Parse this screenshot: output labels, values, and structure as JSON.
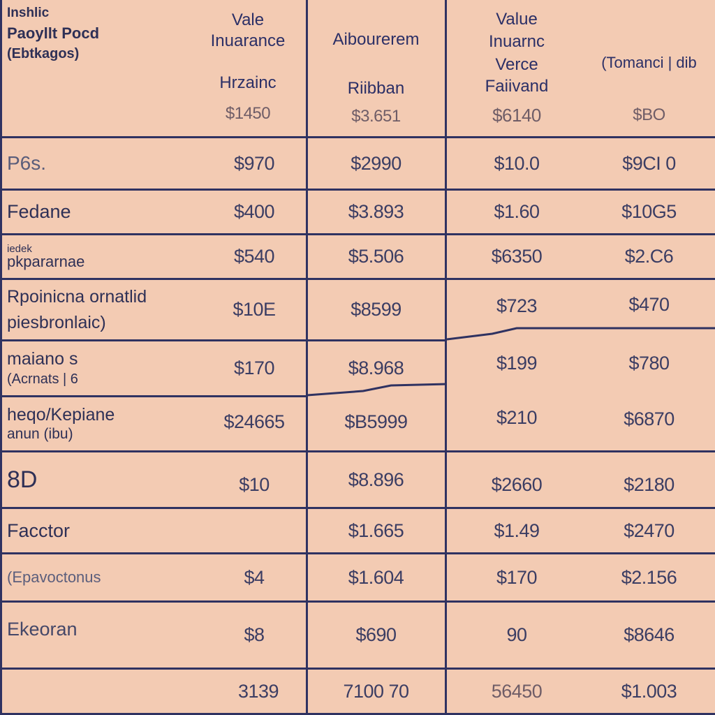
{
  "header": {
    "c0": [
      "Inshlic",
      "Paoyllt Pocd",
      "(Ebtkagos)"
    ],
    "c1_top": [
      "Vale",
      "Inuarance"
    ],
    "c1_sub": "Hrzainc",
    "c1_val": "$1450",
    "c2_top": "Aibourerem",
    "c2_sub": "Riibban",
    "c2_val": "$3.651",
    "c3_top": [
      "Value",
      "Inuarnc",
      "Verce",
      "Faiivand"
    ],
    "c3_val": "$6140",
    "c4_top": "(Tomanci | dib",
    "c4_val": "$BO"
  },
  "rows": [
    {
      "label": [
        "P6s."
      ],
      "v": [
        "$970",
        "$2990",
        "$10.0",
        "$9CI 0"
      ]
    },
    {
      "label": [
        "Fedane"
      ],
      "v": [
        "$400",
        "$3.893",
        "$1.60",
        "$10G5"
      ]
    },
    {
      "label": [
        "iedek",
        "pkpararnae"
      ],
      "v": [
        "$540",
        "$5.506",
        "$6350",
        "$2.C6"
      ]
    },
    {
      "label": [
        "Rpoinicna ornatlid",
        "piesbronlaic)"
      ],
      "v": [
        "$10E",
        "$8599",
        "$723",
        "$470"
      ]
    },
    {
      "label": [
        "maiano s",
        "(Acrnats | 6"
      ],
      "v": [
        "$170",
        "$8.968",
        "$199",
        "$780"
      ]
    },
    {
      "label": [
        "heqo/Kepiane",
        "anun (ibu)"
      ],
      "v": [
        "$24665",
        "$B5999",
        "$210",
        "$6870"
      ]
    },
    {
      "label": [
        "8D"
      ],
      "v": [
        "$10",
        "$8.896",
        "$2660",
        "$2180"
      ]
    },
    {
      "label": [
        "Facctor"
      ],
      "v": [
        "",
        "$1.665",
        "$1.49",
        "$2470"
      ]
    },
    {
      "label": [
        "(Epavoctonus"
      ],
      "v": [
        "$4",
        "$1.604",
        "$170",
        "$2.156"
      ]
    },
    {
      "label": [
        "Ekeoran"
      ],
      "v": [
        "$8",
        "$690",
        "90",
        "$8646"
      ]
    },
    {
      "label": [
        ""
      ],
      "v": [
        "3139",
        "7100 70",
        "56450",
        "$1.003"
      ]
    }
  ]
}
